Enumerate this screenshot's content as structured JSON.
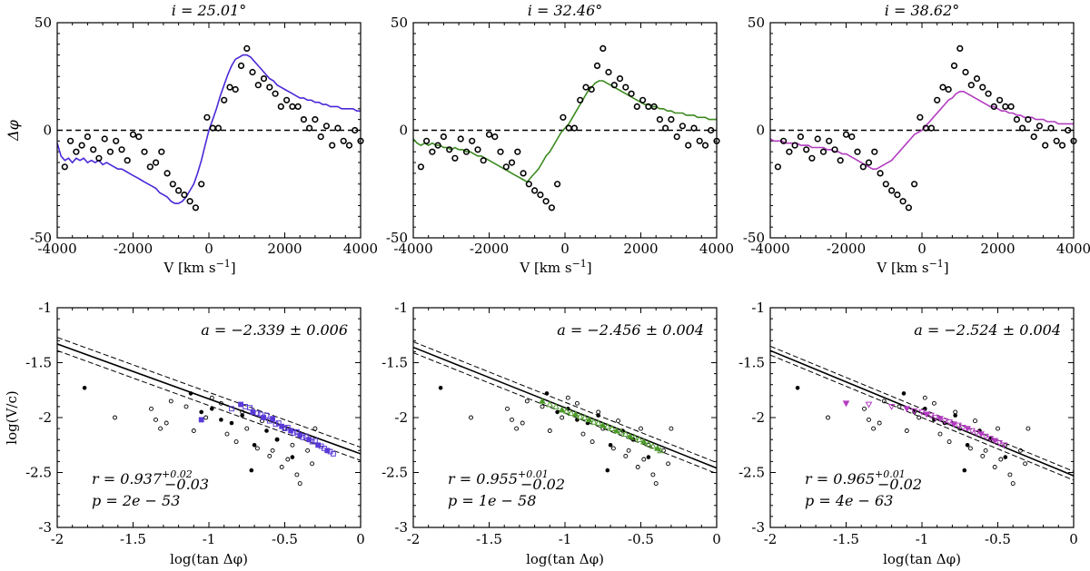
{
  "top_row": [
    {
      "title": "i = 25.01°",
      "model_color": "#4b28d8",
      "model_x": [
        -4000,
        -3900,
        -3800,
        -3700,
        -3600,
        -3500,
        -3400,
        -3300,
        -3200,
        -3100,
        -3000,
        -2900,
        -2800,
        -2700,
        -2600,
        -2500,
        -2400,
        -2300,
        -2200,
        -2100,
        -2000,
        -1900,
        -1800,
        -1700,
        -1600,
        -1500,
        -1400,
        -1300,
        -1200,
        -1100,
        -1000,
        -900,
        -800,
        -700,
        -600,
        -500,
        -400,
        -300,
        -200,
        -100,
        0,
        100,
        200,
        300,
        400,
        500,
        600,
        700,
        800,
        900,
        1000,
        1100,
        1200,
        1300,
        1400,
        1500,
        1600,
        1700,
        1800,
        1900,
        2000,
        2100,
        2200,
        2300,
        2400,
        2500,
        2600,
        2700,
        2800,
        2900,
        3000,
        3100,
        3200,
        3300,
        3400,
        3500,
        3600,
        3700,
        3800,
        3900,
        4000
      ],
      "model_y": [
        -6,
        -12,
        -14,
        -13,
        -15,
        -13,
        -14,
        -13,
        -15,
        -14,
        -15,
        -14,
        -16,
        -15,
        -16,
        -17,
        -18,
        -18,
        -19,
        -20,
        -21,
        -22,
        -23,
        -24,
        -25,
        -26,
        -27,
        -29,
        -30,
        -31,
        -33,
        -34,
        -34,
        -33,
        -31,
        -28,
        -25,
        -20,
        -14,
        -7,
        0,
        5,
        10,
        16,
        21,
        26,
        30,
        33,
        34,
        35,
        35,
        34,
        32,
        30,
        28,
        26,
        24,
        23,
        21,
        20,
        19,
        18,
        17,
        16,
        15,
        15,
        14,
        14,
        13,
        13,
        12,
        12,
        11,
        11,
        11,
        10,
        10,
        10,
        10,
        9,
        9
      ]
    },
    {
      "title": "i = 32.46°",
      "model_color": "#3b8a1f",
      "model_x": [
        -4000,
        -3900,
        -3800,
        -3700,
        -3600,
        -3500,
        -3400,
        -3300,
        -3200,
        -3100,
        -3000,
        -2900,
        -2800,
        -2700,
        -2600,
        -2500,
        -2400,
        -2300,
        -2200,
        -2100,
        -2000,
        -1900,
        -1800,
        -1700,
        -1600,
        -1500,
        -1400,
        -1300,
        -1200,
        -1100,
        -1000,
        -900,
        -800,
        -700,
        -600,
        -500,
        -400,
        -300,
        -200,
        -100,
        0,
        100,
        200,
        300,
        400,
        500,
        600,
        700,
        800,
        900,
        1000,
        1100,
        1200,
        1300,
        1400,
        1500,
        1600,
        1700,
        1800,
        1900,
        2000,
        2100,
        2200,
        2300,
        2400,
        2500,
        2600,
        2700,
        2800,
        2900,
        3000,
        3100,
        3200,
        3300,
        3400,
        3500,
        3600,
        3700,
        3800,
        3900,
        4000
      ],
      "model_y": [
        -4,
        -6,
        -7,
        -6,
        -7,
        -6,
        -7,
        -7,
        -8,
        -8,
        -9,
        -8,
        -9,
        -9,
        -10,
        -10,
        -11,
        -12,
        -12,
        -13,
        -14,
        -15,
        -16,
        -17,
        -18,
        -19,
        -20,
        -21,
        -22,
        -23,
        -24,
        -22,
        -20,
        -18,
        -15,
        -12,
        -10,
        -7,
        -4,
        -1,
        1,
        3,
        6,
        9,
        12,
        15,
        18,
        20,
        22,
        23,
        23,
        22,
        21,
        20,
        19,
        18,
        17,
        16,
        15,
        14,
        13,
        12,
        12,
        11,
        11,
        10,
        10,
        9,
        9,
        8,
        8,
        8,
        7,
        7,
        7,
        6,
        6,
        6,
        5,
        5,
        5
      ]
    },
    {
      "title": "i = 38.62°",
      "model_color": "#b23cc0",
      "model_x": [
        -4000,
        -3900,
        -3800,
        -3700,
        -3600,
        -3500,
        -3400,
        -3300,
        -3200,
        -3100,
        -3000,
        -2900,
        -2800,
        -2700,
        -2600,
        -2500,
        -2400,
        -2300,
        -2200,
        -2100,
        -2000,
        -1900,
        -1800,
        -1700,
        -1600,
        -1500,
        -1400,
        -1300,
        -1200,
        -1100,
        -1000,
        -900,
        -800,
        -700,
        -600,
        -500,
        -400,
        -300,
        -200,
        -100,
        0,
        100,
        200,
        300,
        400,
        500,
        600,
        700,
        800,
        900,
        1000,
        1100,
        1200,
        1300,
        1400,
        1500,
        1600,
        1700,
        1800,
        1900,
        2000,
        2100,
        2200,
        2300,
        2400,
        2500,
        2600,
        2700,
        2800,
        2900,
        3000,
        3100,
        3200,
        3300,
        3400,
        3500,
        3600,
        3700,
        3800,
        3900,
        4000
      ],
      "model_y": [
        -4,
        -5,
        -5,
        -5,
        -6,
        -6,
        -6,
        -6,
        -7,
        -7,
        -7,
        -8,
        -8,
        -8,
        -8,
        -9,
        -9,
        -10,
        -10,
        -11,
        -11,
        -12,
        -13,
        -14,
        -15,
        -16,
        -17,
        -18,
        -18,
        -17,
        -16,
        -15,
        -14,
        -12,
        -10,
        -8,
        -6,
        -4,
        -2,
        -1,
        0,
        2,
        4,
        6,
        8,
        10,
        12,
        14,
        15,
        17,
        18,
        18,
        17,
        16,
        15,
        14,
        13,
        12,
        11,
        11,
        10,
        9,
        9,
        8,
        8,
        7,
        7,
        6,
        6,
        6,
        5,
        5,
        5,
        4,
        4,
        4,
        3,
        3,
        3,
        3,
        3
      ]
    }
  ],
  "top_axes": {
    "xlim": [
      -4000,
      4000
    ],
    "ylim": [
      -50,
      50
    ],
    "xticks": [
      -4000,
      -2000,
      0,
      2000,
      4000
    ],
    "xtick_labels": [
      "-4000",
      "-2000",
      "0",
      "2000",
      "4000"
    ],
    "yticks": [
      -50,
      0,
      50
    ],
    "ytick_labels": [
      "-50",
      "0",
      "50"
    ],
    "xlabel": "V [km s",
    "xlabel_sup": "−1",
    "xlabel_end": "]",
    "ylabel": "Δφ",
    "observed_x": [
      -3800,
      -3650,
      -3500,
      -3350,
      -3200,
      -3050,
      -2900,
      -2750,
      -2600,
      -2450,
      -2300,
      -2150,
      -2000,
      -1850,
      -1700,
      -1550,
      -1400,
      -1250,
      -1100,
      -950,
      -800,
      -650,
      -500,
      -350,
      -200,
      -50,
      100,
      250,
      400,
      550,
      700,
      850,
      1000,
      1150,
      1300,
      1450,
      1600,
      1750,
      1900,
      2050,
      2200,
      2350,
      2500,
      2650,
      2800,
      2950,
      3100,
      3250,
      3400,
      3550,
      3700,
      3850,
      4000
    ],
    "observed_y": [
      -17,
      -5,
      -10,
      -7,
      -3,
      -9,
      -13,
      -4,
      -10,
      -5,
      -9,
      -14,
      -2,
      -3,
      -10,
      -17,
      -15,
      -10,
      -20,
      -25,
      -28,
      -30,
      -33,
      -36,
      -25,
      6,
      1,
      1,
      14,
      20,
      19,
      30,
      38,
      27,
      21,
      24,
      20,
      17,
      11,
      14,
      11,
      11,
      5,
      1,
      5,
      -3,
      2,
      -7,
      1,
      -5,
      -7,
      0,
      -5
    ]
  },
  "bottom_row": [
    {
      "a_text": "a = −2.339 ± 0.006",
      "r_text": "r = 0.937",
      "r_sup": "+0.02",
      "r_sub": "−0.03",
      "p_text": "p = 2e − 53",
      "slope": -0.5,
      "intercept": -2.33,
      "band": 0.06,
      "marker": "square",
      "color": "#5a3ad8",
      "model_x": [
        -0.79,
        -0.76,
        -0.73,
        -0.71,
        -0.68,
        -0.66,
        -0.64,
        -0.62,
        -0.6,
        -0.58,
        -0.56,
        -0.54,
        -0.52,
        -0.5,
        -0.48,
        -0.46,
        -0.44,
        -0.42,
        -0.4,
        -0.38,
        -0.36,
        -0.34,
        -0.32,
        -0.3,
        -0.28,
        -0.26,
        -0.24,
        -0.22,
        -0.2,
        -0.18,
        -1.05,
        -0.85
      ],
      "model_y": [
        -1.88,
        -1.9,
        -1.91,
        -1.95,
        -1.96,
        -1.97,
        -2.0,
        -1.98,
        -2.03,
        -2.01,
        -2.06,
        -2.05,
        -2.08,
        -2.1,
        -2.09,
        -2.12,
        -2.14,
        -2.13,
        -2.16,
        -2.18,
        -2.17,
        -2.2,
        -2.22,
        -2.21,
        -2.25,
        -2.26,
        -2.28,
        -2.3,
        -2.31,
        -2.33,
        -2.02,
        -1.92
      ]
    },
    {
      "a_text": "a = −2.456 ± 0.004",
      "r_text": "r = 0.955",
      "r_sup": "+0.01",
      "r_sub": "−0.02",
      "p_text": "p = 1e − 58",
      "slope": -0.55,
      "intercept": -2.46,
      "band": 0.05,
      "marker": "triangle",
      "color": "#4c9a2a",
      "model_x": [
        -1.15,
        -1.1,
        -1.06,
        -1.02,
        -0.99,
        -0.96,
        -0.93,
        -0.9,
        -0.87,
        -0.84,
        -0.81,
        -0.78,
        -0.75,
        -0.72,
        -0.69,
        -0.66,
        -0.63,
        -0.6,
        -0.57,
        -0.54,
        -0.51,
        -0.48,
        -0.45,
        -0.42,
        -0.39,
        -0.37
      ],
      "model_y": [
        -1.85,
        -1.88,
        -1.9,
        -1.93,
        -1.94,
        -1.96,
        -1.97,
        -1.99,
        -2.0,
        -2.02,
        -2.04,
        -2.05,
        -2.07,
        -2.08,
        -2.1,
        -2.12,
        -2.13,
        -2.15,
        -2.17,
        -2.18,
        -2.2,
        -2.22,
        -2.24,
        -2.26,
        -2.28,
        -2.3
      ]
    },
    {
      "a_text": "a = −2.524 ± 0.004",
      "r_text": "r = 0.965",
      "r_sup": "+0.01",
      "r_sub": "−0.02",
      "p_text": "p = 4e − 63",
      "slope": -0.57,
      "intercept": -2.53,
      "band": 0.04,
      "marker": "triangle-down",
      "color": "#b43cc2",
      "model_x": [
        -1.5,
        -1.35,
        -1.2,
        -1.1,
        -1.05,
        -1.0,
        -0.97,
        -0.94,
        -0.91,
        -0.88,
        -0.85,
        -0.82,
        -0.79,
        -0.76,
        -0.73,
        -0.7,
        -0.67,
        -0.64,
        -0.61,
        -0.58,
        -0.55,
        -0.52,
        -0.49,
        -0.46
      ],
      "model_y": [
        -1.87,
        -1.88,
        -1.9,
        -1.92,
        -1.94,
        -1.95,
        -1.97,
        -1.98,
        -2.0,
        -2.01,
        -2.03,
        -2.04,
        -2.06,
        -2.07,
        -2.09,
        -2.1,
        -2.12,
        -2.14,
        -2.15,
        -2.17,
        -2.19,
        -2.21,
        -2.23,
        -2.25
      ]
    }
  ],
  "bottom_axes": {
    "xlim": [
      -2,
      0
    ],
    "ylim": [
      -3,
      -1
    ],
    "xticks": [
      -2,
      -1.5,
      -1,
      -0.5,
      0
    ],
    "xtick_labels": [
      "-2",
      "-1.5",
      "-1",
      "-0.5",
      "0"
    ],
    "yticks": [
      -3,
      -2.5,
      -2,
      -1.5,
      -1
    ],
    "ytick_labels": [
      "-3",
      "-2.5",
      "-2",
      "-1.5",
      "-1"
    ],
    "xlabel": "log(tan Δφ)",
    "ylabel": "log(V/c)",
    "filled_x": [
      -1.82,
      -1.12,
      -1.05,
      -0.98,
      -0.92,
      -0.85,
      -0.78,
      -0.7,
      -0.62,
      -0.55,
      -0.45,
      -0.72
    ],
    "filled_y": [
      -1.73,
      -1.78,
      -1.95,
      -1.92,
      -2.02,
      -2.05,
      -1.98,
      -2.25,
      -2.12,
      -2.2,
      -2.36,
      -2.48
    ],
    "open_x": [
      -1.62,
      -1.38,
      -1.35,
      -1.32,
      -1.28,
      -1.25,
      -1.15,
      -1.1,
      -1.02,
      -0.98,
      -0.92,
      -0.88,
      -0.82,
      -0.78,
      -0.75,
      -0.68,
      -0.65,
      -0.6,
      -0.58,
      -0.55,
      -0.52,
      -0.5,
      -0.48,
      -0.45,
      -0.42,
      -0.4,
      -0.35,
      -0.32,
      -0.3
    ],
    "open_y": [
      -2.0,
      -1.92,
      -2.02,
      -2.1,
      -2.05,
      -1.85,
      -1.9,
      -2.12,
      -2.0,
      -1.82,
      -1.87,
      -2.15,
      -2.22,
      -1.95,
      -2.1,
      -2.28,
      -2.03,
      -2.35,
      -2.3,
      -2.2,
      -2.45,
      -2.1,
      -2.38,
      -2.25,
      -2.52,
      -2.6,
      -2.3,
      -2.42,
      -2.1
    ]
  }
}
